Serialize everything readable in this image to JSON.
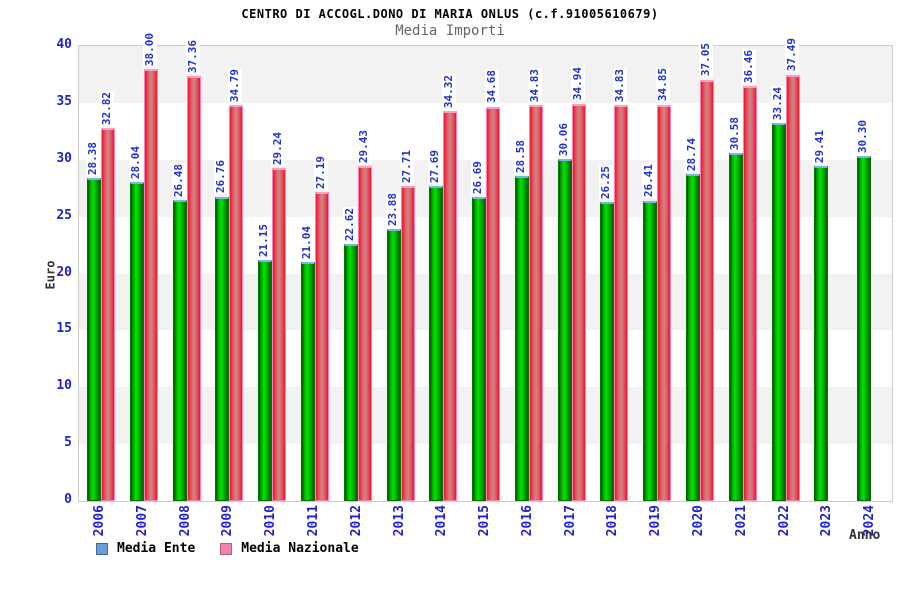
{
  "title": "CENTRO DI ACCOGL.DONO DI MARIA ONLUS (c.f.91005610679)",
  "subtitle": "Media Importi",
  "axes": {
    "y_label": "Euro",
    "x_label": "Anno",
    "y_ticks": [
      0,
      5,
      10,
      15,
      20,
      25,
      30,
      35,
      40
    ],
    "y_max": 40
  },
  "legend": [
    {
      "label": "Media Ente",
      "swatch_color": "#6b9ed4"
    },
    {
      "label": "Media Nazionale",
      "swatch_color": "#f283ae"
    }
  ],
  "colors": {
    "ente_bar_main": "#00cc00",
    "naz_bar_main": "#ee2233",
    "label_text": "#2233cc",
    "band_gray": "#f2f2f2"
  },
  "chart_data": {
    "type": "bar",
    "title": "CENTRO DI ACCOGL.DONO DI MARIA ONLUS (c.f.91005610679)",
    "subtitle": "Media Importi",
    "xlabel": "Anno",
    "ylabel": "Euro",
    "ylim": [
      0,
      40
    ],
    "grid": "alternating-bands",
    "legend_position": "bottom-left",
    "categories": [
      "2006",
      "2007",
      "2008",
      "2009",
      "2010",
      "2011",
      "2012",
      "2013",
      "2014",
      "2015",
      "2016",
      "2017",
      "2018",
      "2019",
      "2020",
      "2021",
      "2022",
      "2023",
      "2024"
    ],
    "series": [
      {
        "name": "Media Ente",
        "values": [
          28.38,
          28.04,
          26.48,
          26.76,
          21.15,
          21.04,
          22.62,
          23.88,
          27.69,
          26.69,
          28.58,
          30.06,
          26.25,
          26.41,
          28.74,
          30.58,
          33.24,
          29.41,
          30.3
        ]
      },
      {
        "name": "Media Nazionale",
        "values": [
          32.82,
          38.0,
          37.36,
          34.79,
          29.24,
          27.19,
          29.43,
          27.71,
          34.32,
          34.68,
          34.83,
          34.94,
          34.83,
          34.85,
          37.05,
          36.46,
          37.49,
          null,
          null
        ]
      }
    ]
  }
}
